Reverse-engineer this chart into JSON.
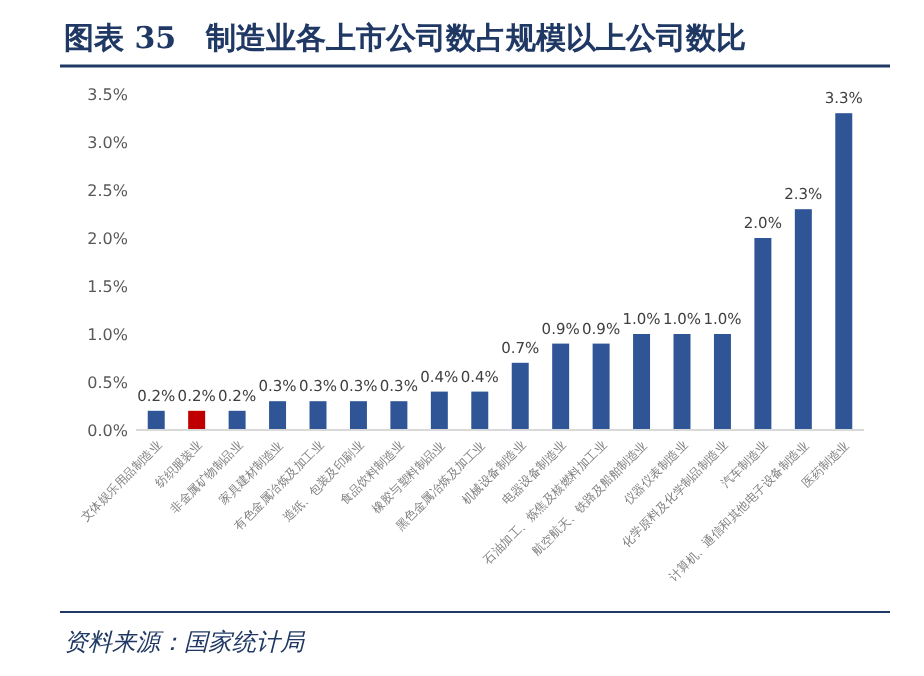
{
  "chart_data": {
    "type": "bar",
    "title": "图表 35　制造业各上市公司数占规模以上公司数比",
    "categories": [
      "文体娱乐用品制造业",
      "纺织服装业",
      "非金属矿物制品业",
      "家具建材制造业",
      "有色金属冶炼及加工业",
      "造纸、包装及印刷业",
      "食品饮料制造业",
      "橡胶与塑料制品业",
      "黑色金属冶炼及加工业",
      "机械设备制造业",
      "电器设备制造业",
      "石油加工、炼焦及核燃料加工业",
      "航空航天、铁路及船舶制造业",
      "仪器仪表制造业",
      "化学原料及化学制品制造业",
      "汽车制造业",
      "计算机、通信和其他电子设备制造业",
      "医药制造业"
    ],
    "values": [
      0.2,
      0.2,
      0.2,
      0.3,
      0.3,
      0.3,
      0.3,
      0.4,
      0.4,
      0.7,
      0.9,
      0.9,
      1.0,
      1.0,
      1.0,
      2.0,
      2.3,
      3.3
    ],
    "value_labels": [
      "0.2%",
      "0.2%",
      "0.2%",
      "0.3%",
      "0.3%",
      "0.3%",
      "0.3%",
      "0.4%",
      "0.4%",
      "0.7%",
      "0.9%",
      "0.9%",
      "1.0%",
      "1.0%",
      "1.0%",
      "2.0%",
      "2.3%",
      "3.3%"
    ],
    "colors": [
      "#2f5597",
      "#c00000",
      "#2f5597",
      "#2f5597",
      "#2f5597",
      "#2f5597",
      "#2f5597",
      "#2f5597",
      "#2f5597",
      "#2f5597",
      "#2f5597",
      "#2f5597",
      "#2f5597",
      "#2f5597",
      "#2f5597",
      "#2f5597",
      "#2f5597",
      "#2f5597"
    ],
    "ylim": [
      0,
      3.5
    ],
    "yticks": [
      {
        "value": 0,
        "label": "0.0%"
      },
      {
        "value": 0.5,
        "label": "0.5%"
      },
      {
        "value": 1,
        "label": "1.0%"
      },
      {
        "value": 1.5,
        "label": "1.5%"
      },
      {
        "value": 2,
        "label": "2.0%"
      },
      {
        "value": 2.5,
        "label": "2.5%"
      },
      {
        "value": 3,
        "label": "3.0%"
      },
      {
        "value": 3.5,
        "label": "3.5%"
      }
    ],
    "grid": false,
    "annotations": [
      "资料来源：国家统计局"
    ]
  }
}
